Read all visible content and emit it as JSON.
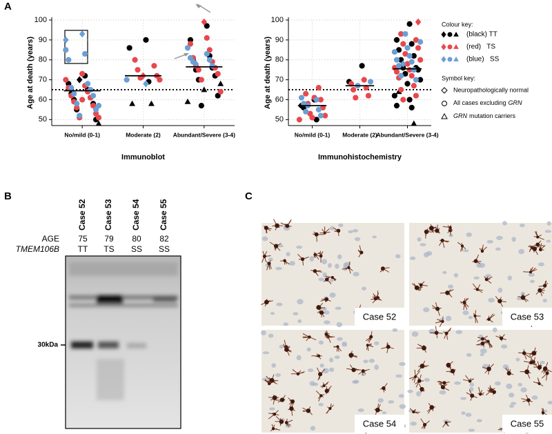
{
  "chart_data": [
    {
      "type": "strip",
      "panel_label": "A",
      "xlabel": "Immunoblot",
      "ylabel": "Age at death (years)",
      "categories": [
        "No/mild (0-1)",
        "Moderate (2)",
        "Abundant/Severe (3-4)"
      ],
      "ylim": [
        47,
        100
      ],
      "yticks": [
        50,
        60,
        70,
        80,
        90,
        100
      ],
      "grid": true,
      "reference_line": 65,
      "medians": [
        64.5,
        72,
        76.5
      ],
      "series": [
        {
          "color": "#000000",
          "marker": "circle",
          "x": [
            "No/mild (0-1)",
            "No/mild (0-1)",
            "No/mild (0-1)",
            "No/mild (0-1)",
            "No/mild (0-1)",
            "No/mild (0-1)",
            "No/mild (0-1)",
            "No/mild (0-1)",
            "No/mild (0-1)",
            "Moderate (2)",
            "Moderate (2)",
            "Moderate (2)",
            "Abundant/Severe (3-4)",
            "Abundant/Severe (3-4)",
            "Abundant/Severe (3-4)",
            "Abundant/Severe (3-4)",
            "Abundant/Severe (3-4)",
            "Abundant/Severe (3-4)",
            "Abundant/Severe (3-4)",
            "Abundant/Severe (3-4)",
            "Abundant/Severe (3-4)",
            "Abundant/Severe (3-4)"
          ],
          "values": [
            72,
            68,
            65,
            63,
            61,
            60,
            58,
            55,
            50,
            90,
            86,
            69,
            97,
            90,
            82,
            80,
            76,
            75,
            72,
            70,
            62,
            57
          ]
        },
        {
          "color": "#000000",
          "marker": "diamond",
          "x": [
            "No/mild (0-1)"
          ],
          "values": [
            70
          ]
        },
        {
          "color": "#000000",
          "marker": "triangle",
          "x": [
            "No/mild (0-1)",
            "Moderate (2)",
            "Moderate (2)",
            "Abundant/Severe (3-4)",
            "Abundant/Severe (3-4)",
            "Abundant/Severe (3-4)"
          ],
          "values": [
            48,
            58,
            58,
            68,
            65,
            59
          ]
        },
        {
          "color": "#e8484d",
          "marker": "circle",
          "x": [
            "No/mild (0-1)",
            "No/mild (0-1)",
            "No/mild (0-1)",
            "No/mild (0-1)",
            "No/mild (0-1)",
            "No/mild (0-1)",
            "No/mild (0-1)",
            "No/mild (0-1)",
            "No/mild (0-1)",
            "No/mild (0-1)",
            "No/mild (0-1)",
            "No/mild (0-1)",
            "No/mild (0-1)",
            "No/mild (0-1)",
            "Moderate (2)",
            "Moderate (2)",
            "Moderate (2)",
            "Moderate (2)",
            "Moderate (2)",
            "Moderate (2)",
            "Abundant/Severe (3-4)",
            "Abundant/Severe (3-4)",
            "Abundant/Severe (3-4)",
            "Abundant/Severe (3-4)",
            "Abundant/Severe (3-4)",
            "Abundant/Severe (3-4)",
            "Abundant/Severe (3-4)",
            "Abundant/Severe (3-4)",
            "Abundant/Severe (3-4)",
            "Abundant/Severe (3-4)",
            "Abundant/Severe (3-4)"
          ],
          "values": [
            73,
            70,
            67,
            66,
            64,
            62,
            61,
            59,
            57,
            56,
            53,
            51,
            51,
            60,
            80,
            77,
            75,
            72,
            71,
            70,
            91,
            88,
            85,
            81,
            79,
            77,
            76,
            75,
            73,
            70,
            64
          ]
        },
        {
          "color": "#e8484d",
          "marker": "diamond",
          "x": [
            "Moderate (2)",
            "Abundant/Severe (3-4)"
          ],
          "values": [
            72,
            99
          ]
        },
        {
          "color": "#6a9fd4",
          "marker": "circle",
          "x": [
            "No/mild (0-1)",
            "No/mild (0-1)",
            "No/mild (0-1)",
            "No/mild (0-1)",
            "No/mild (0-1)",
            "No/mild (0-1)",
            "No/mild (0-1)",
            "No/mild (0-1)",
            "No/mild (0-1)",
            "No/mild (0-1)",
            "No/mild (0-1)",
            "No/mild (0-1)",
            "Moderate (2)",
            "Abundant/Severe (3-4)",
            "Abundant/Severe (3-4)",
            "Abundant/Severe (3-4)",
            "Abundant/Severe (3-4)",
            "Abundant/Severe (3-4)",
            "Abundant/Severe (3-4)"
          ],
          "values": [
            85,
            83,
            80,
            68,
            66,
            65,
            63,
            62,
            58,
            55,
            52,
            57,
            70,
            86,
            83,
            81,
            80,
            79,
            77
          ]
        },
        {
          "color": "#6a9fd4",
          "marker": "diamond",
          "x": [
            "No/mild (0-1)",
            "No/mild (0-1)",
            "Moderate (2)",
            "Abundant/Severe (3-4)"
          ],
          "values": [
            93,
            90,
            68,
            78
          ]
        }
      ]
    },
    {
      "type": "strip",
      "xlabel": "Immunohistochemistry",
      "ylabel": "Age at death (years)",
      "categories": [
        "No/mild (0-1)",
        "Moderate (2)",
        "Abundant/Severe (3-4)"
      ],
      "ylim": [
        47,
        100
      ],
      "yticks": [
        50,
        60,
        70,
        80,
        90,
        100
      ],
      "grid": true,
      "reference_line": 65,
      "medians": [
        57,
        67,
        75.5
      ],
      "series": [
        {
          "color": "#000000",
          "marker": "circle",
          "x": [
            "No/mild (0-1)",
            "No/mild (0-1)",
            "No/mild (0-1)",
            "No/mild (0-1)",
            "Moderate (2)",
            "Moderate (2)",
            "Abundant/Severe (3-4)",
            "Abundant/Severe (3-4)",
            "Abundant/Severe (3-4)",
            "Abundant/Severe (3-4)",
            "Abundant/Severe (3-4)",
            "Abundant/Severe (3-4)",
            "Abundant/Severe (3-4)",
            "Abundant/Severe (3-4)",
            "Abundant/Severe (3-4)",
            "Abundant/Severe (3-4)",
            "Abundant/Severe (3-4)",
            "Abundant/Severe (3-4)",
            "Abundant/Severe (3-4)",
            "Abundant/Severe (3-4)",
            "Abundant/Severe (3-4)",
            "Abundant/Severe (3-4)"
          ],
          "values": [
            60,
            57,
            50,
            56,
            77,
            69,
            98,
            90,
            88,
            85,
            82,
            80,
            76,
            76,
            75,
            73,
            70,
            68,
            62,
            60,
            57,
            56
          ]
        },
        {
          "color": "#000000",
          "marker": "triangle",
          "x": [
            "Abundant/Severe (3-4)",
            "Abundant/Severe (3-4)"
          ],
          "values": [
            64,
            48
          ]
        },
        {
          "color": "#e8484d",
          "marker": "circle",
          "x": [
            "No/mild (0-1)",
            "No/mild (0-1)",
            "No/mild (0-1)",
            "No/mild (0-1)",
            "No/mild (0-1)",
            "No/mild (0-1)",
            "No/mild (0-1)",
            "No/mild (0-1)",
            "No/mild (0-1)",
            "No/mild (0-1)",
            "Moderate (2)",
            "Moderate (2)",
            "Moderate (2)",
            "Moderate (2)",
            "Moderate (2)",
            "Moderate (2)",
            "Abundant/Severe (3-4)",
            "Abundant/Severe (3-4)",
            "Abundant/Severe (3-4)",
            "Abundant/Severe (3-4)",
            "Abundant/Severe (3-4)",
            "Abundant/Severe (3-4)",
            "Abundant/Severe (3-4)",
            "Abundant/Severe (3-4)",
            "Abundant/Severe (3-4)",
            "Abundant/Severe (3-4)",
            "Abundant/Severe (3-4)",
            "Abundant/Severe (3-4)",
            "Abundant/Severe (3-4)",
            "Abundant/Severe (3-4)",
            "Abundant/Severe (3-4)",
            "Abundant/Severe (3-4)"
          ],
          "values": [
            66,
            63,
            60,
            58,
            56,
            53,
            52,
            51,
            50,
            61,
            70,
            68,
            66,
            65,
            62,
            61,
            93,
            90,
            88,
            86,
            83,
            80,
            78,
            76,
            75,
            74,
            72,
            71,
            67,
            65,
            62,
            60
          ]
        },
        {
          "color": "#e8484d",
          "marker": "diamond",
          "x": [
            "Abundant/Severe (3-4)"
          ],
          "values": [
            99
          ]
        },
        {
          "color": "#6a9fd4",
          "marker": "circle",
          "x": [
            "No/mild (0-1)",
            "No/mild (0-1)",
            "No/mild (0-1)",
            "No/mild (0-1)",
            "No/mild (0-1)",
            "No/mild (0-1)",
            "No/mild (0-1)",
            "Moderate (2)",
            "Moderate (2)",
            "Abundant/Severe (3-4)",
            "Abundant/Severe (3-4)",
            "Abundant/Severe (3-4)",
            "Abundant/Severe (3-4)",
            "Abundant/Severe (3-4)",
            "Abundant/Severe (3-4)",
            "Abundant/Severe (3-4)",
            "Abundant/Severe (3-4)",
            "Abundant/Severe (3-4)",
            "Abundant/Severe (3-4)",
            "Abundant/Severe (3-4)"
          ],
          "values": [
            61,
            60,
            58,
            55,
            54,
            52,
            57,
            69,
            67,
            93,
            89,
            86,
            84,
            82,
            80,
            79,
            77,
            75,
            72,
            70
          ]
        },
        {
          "color": "#6a9fd4",
          "marker": "diamond",
          "x": [
            "Abundant/Severe (3-4)"
          ],
          "values": [
            78
          ]
        }
      ]
    }
  ],
  "legend": {
    "colour_title": "Colour key:",
    "colour_entries": [
      {
        "label": "(black) TT",
        "color": "#000000"
      },
      {
        "label": "(red)   TS",
        "color": "#e8484d"
      },
      {
        "label": "(blue)   SS",
        "color": "#6a9fd4"
      }
    ],
    "symbol_title": "Symbol key:",
    "symbol_normal": "Neuropathologically normal",
    "symbol_all": "All cases excluding",
    "symbol_all_gene": "GRN",
    "symbol_carrier_gene": "GRN",
    "symbol_carrier": "mutation carriers"
  },
  "panel_b": {
    "label": "B",
    "cases": [
      "Case 52",
      "Case 53",
      "Case 54",
      "Case 55"
    ],
    "age_label": "AGE",
    "ages": [
      75,
      79,
      80,
      82
    ],
    "genotype_label": "TMEM106B",
    "genotypes": [
      "TT",
      "TS",
      "SS",
      "SS"
    ],
    "size_marker": "30kDa"
  },
  "panel_c": {
    "label": "C",
    "images": [
      "Case 52",
      "Case 53",
      "Case 54",
      "Case 55"
    ]
  }
}
